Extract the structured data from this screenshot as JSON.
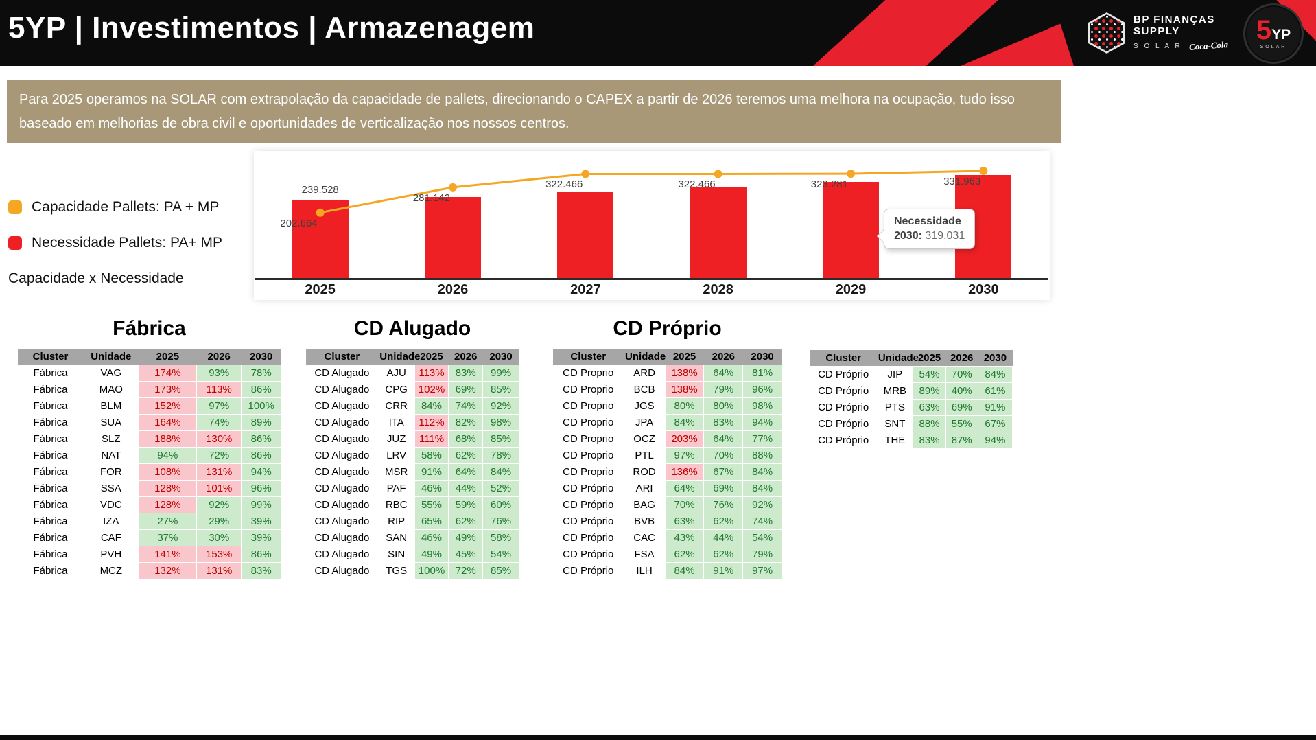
{
  "header": {
    "title": "5YP | Investimentos | Armazenagem",
    "logo": {
      "line1": "BP FINANÇAS",
      "line2": "SUPPLY",
      "solar": "S O L A R",
      "coke": "Coca-Cola",
      "badge_5": "5",
      "badge_yp": "YP",
      "badge_sub": "SOLAR"
    }
  },
  "banner": {
    "text": "Para 2025 operamos na SOLAR com extrapolação da capacidade de pallets, direcionando o CAPEX a partir de 2026 teremos uma melhora na ocupação, tudo isso baseado em melhorias de obra civil e oportunidades de verticalização nos nossos centros."
  },
  "legend": {
    "capacity_label": "Capacidade Pallets: PA + MP",
    "need_label": "Necessidade Pallets: PA+ MP",
    "subtitle": "Capacidade x Necessidade"
  },
  "colors": {
    "accent_red": "#E8212E",
    "bar_red": "#EE2024",
    "line_orange": "#F5A623",
    "banner_tan": "#A89878",
    "table_header_gray": "#A6A6A6",
    "cell_green_bg": "#CDEACD",
    "cell_green_text": "#1E7A2E",
    "cell_red_bg": "#F9C7CB",
    "cell_red_text": "#C00000"
  },
  "chart_data": {
    "type": "bar",
    "categories": [
      "2025",
      "2026",
      "2027",
      "2028",
      "2029",
      "2030"
    ],
    "series": [
      {
        "name": "Capacidade Pallets: PA + MP",
        "type": "line",
        "color": "#F5A623",
        "values": [
          202664,
          281142,
          322466,
          322466,
          323281,
          331963
        ],
        "point_labels": [
          "202.664",
          "281.142",
          "322.466",
          "322.466",
          "323.281",
          "331.963"
        ]
      },
      {
        "name": "Necessidade Pallets: PA+ MP",
        "type": "bar",
        "color": "#EE2024",
        "values": [
          239528,
          252000,
          268000,
          283000,
          297000,
          319031
        ],
        "point_labels": [
          "239.528",
          "",
          "",
          "",
          "",
          ""
        ]
      }
    ],
    "callout": {
      "title": "Necessidade",
      "year_label": "2030:",
      "value": "319.031"
    },
    "ylim": [
      0,
      345000
    ],
    "grid": false,
    "legend_position": "left"
  },
  "tables": [
    {
      "title": "Fábrica",
      "headers": [
        "Cluster",
        "Unidade",
        "2025",
        "2026",
        "2030"
      ],
      "rows": [
        [
          "Fábrica",
          "VAG",
          "174%",
          "93%",
          "78%"
        ],
        [
          "Fábrica",
          "MAO",
          "173%",
          "113%",
          "86%"
        ],
        [
          "Fábrica",
          "BLM",
          "152%",
          "97%",
          "100%"
        ],
        [
          "Fábrica",
          "SUA",
          "164%",
          "74%",
          "89%"
        ],
        [
          "Fábrica",
          "SLZ",
          "188%",
          "130%",
          "86%"
        ],
        [
          "Fábrica",
          "NAT",
          "94%",
          "72%",
          "86%"
        ],
        [
          "Fábrica",
          "FOR",
          "108%",
          "131%",
          "94%"
        ],
        [
          "Fábrica",
          "SSA",
          "128%",
          "101%",
          "96%"
        ],
        [
          "Fábrica",
          "VDC",
          "128%",
          "92%",
          "99%"
        ],
        [
          "Fábrica",
          "IZA",
          "27%",
          "29%",
          "39%"
        ],
        [
          "Fábrica",
          "CAF",
          "37%",
          "30%",
          "39%"
        ],
        [
          "Fábrica",
          "PVH",
          "141%",
          "153%",
          "86%"
        ],
        [
          "Fábrica",
          "MCZ",
          "132%",
          "131%",
          "83%"
        ]
      ]
    },
    {
      "title": "CD Alugado",
      "headers": [
        "Cluster",
        "Unidade",
        "2025",
        "2026",
        "2030"
      ],
      "rows": [
        [
          "CD Alugado",
          "AJU",
          "113%",
          "83%",
          "99%"
        ],
        [
          "CD Alugado",
          "CPG",
          "102%",
          "69%",
          "85%"
        ],
        [
          "CD Alugado",
          "CRR",
          "84%",
          "74%",
          "92%"
        ],
        [
          "CD Alugado",
          "ITA",
          "112%",
          "82%",
          "98%"
        ],
        [
          "CD Alugado",
          "JUZ",
          "111%",
          "68%",
          "85%"
        ],
        [
          "CD Alugado",
          "LRV",
          "58%",
          "62%",
          "78%"
        ],
        [
          "CD Alugado",
          "MSR",
          "91%",
          "64%",
          "84%"
        ],
        [
          "CD Alugado",
          "PAF",
          "46%",
          "44%",
          "52%"
        ],
        [
          "CD Alugado",
          "RBC",
          "55%",
          "59%",
          "60%"
        ],
        [
          "CD Alugado",
          "RIP",
          "65%",
          "62%",
          "76%"
        ],
        [
          "CD Alugado",
          "SAN",
          "46%",
          "49%",
          "58%"
        ],
        [
          "CD Alugado",
          "SIN",
          "49%",
          "45%",
          "54%"
        ],
        [
          "CD Alugado",
          "TGS",
          "100%",
          "72%",
          "85%"
        ]
      ]
    },
    {
      "title": "CD Próprio",
      "headers": [
        "Cluster",
        "Unidade",
        "2025",
        "2026",
        "2030"
      ],
      "rows": [
        [
          "CD Proprio",
          "ARD",
          "138%",
          "64%",
          "81%"
        ],
        [
          "CD Proprio",
          "BCB",
          "138%",
          "79%",
          "96%"
        ],
        [
          "CD Proprio",
          "JGS",
          "80%",
          "80%",
          "98%"
        ],
        [
          "CD Proprio",
          "JPA",
          "84%",
          "83%",
          "94%"
        ],
        [
          "CD Proprio",
          "OCZ",
          "203%",
          "64%",
          "77%"
        ],
        [
          "CD Proprio",
          "PTL",
          "97%",
          "70%",
          "88%"
        ],
        [
          "CD Proprio",
          "ROD",
          "136%",
          "67%",
          "84%"
        ],
        [
          "CD Próprio",
          "ARI",
          "64%",
          "69%",
          "84%"
        ],
        [
          "CD Próprio",
          "BAG",
          "70%",
          "76%",
          "92%"
        ],
        [
          "CD Próprio",
          "BVB",
          "63%",
          "62%",
          "74%"
        ],
        [
          "CD Próprio",
          "CAC",
          "43%",
          "44%",
          "54%"
        ],
        [
          "CD Próprio",
          "FSA",
          "62%",
          "62%",
          "79%"
        ],
        [
          "CD Próprio",
          "ILH",
          "84%",
          "91%",
          "97%"
        ]
      ]
    },
    {
      "title": "",
      "headers": [
        "Cluster",
        "Unidade",
        "2025",
        "2026",
        "2030"
      ],
      "rows": [
        [
          "CD Próprio",
          "JIP",
          "54%",
          "70%",
          "84%"
        ],
        [
          "CD Próprio",
          "MRB",
          "89%",
          "40%",
          "61%"
        ],
        [
          "CD Próprio",
          "PTS",
          "63%",
          "69%",
          "91%"
        ],
        [
          "CD Próprio",
          "SNT",
          "88%",
          "55%",
          "67%"
        ],
        [
          "CD Próprio",
          "THE",
          "83%",
          "87%",
          "94%"
        ]
      ]
    }
  ]
}
